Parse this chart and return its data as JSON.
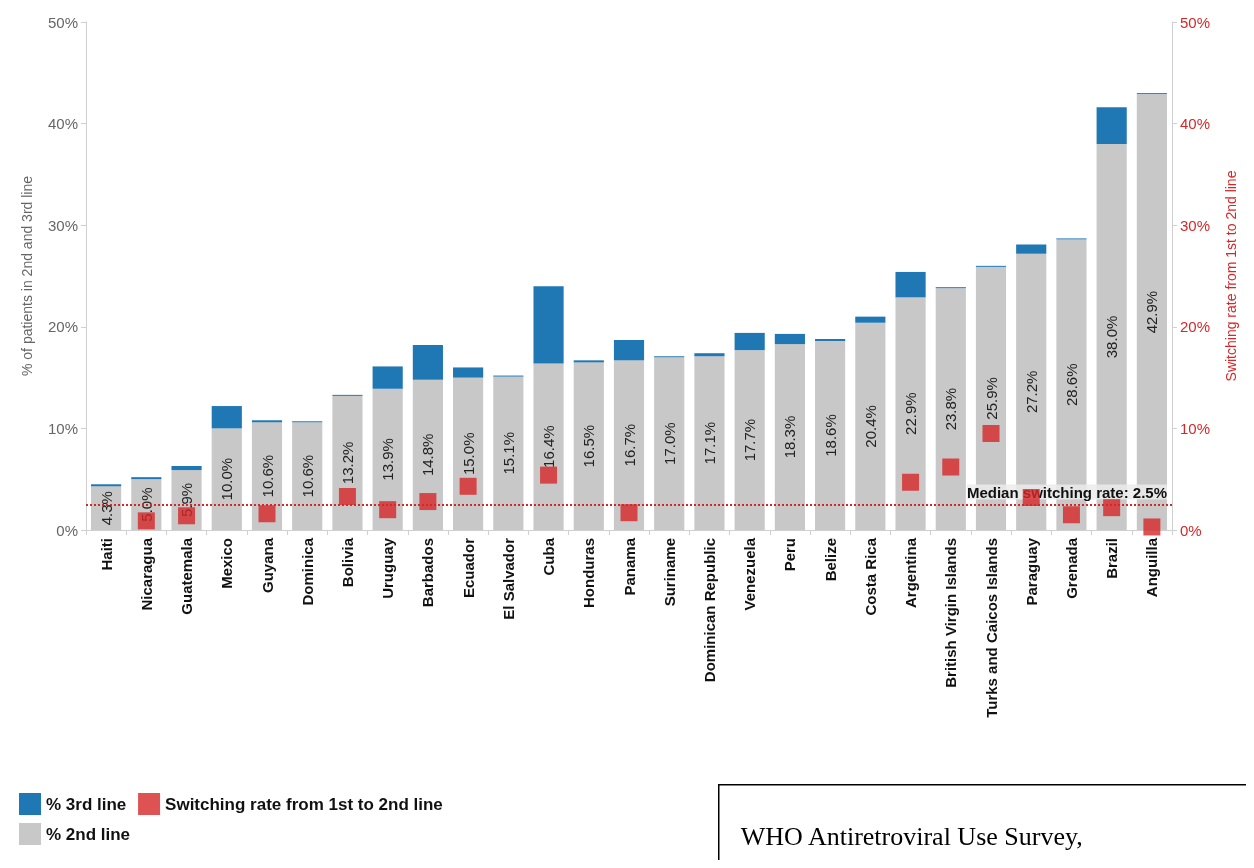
{
  "chart_data": {
    "type": "bar",
    "stacked": true,
    "categories": [
      "Haiti",
      "Nicaragua",
      "Guatemala",
      "Mexico",
      "Guyana",
      "Dominica",
      "Bolivia",
      "Uruguay",
      "Barbados",
      "Ecuador",
      "El Salvador",
      "Cuba",
      "Honduras",
      "Panama",
      "Suriname",
      "Dominican Republic",
      "Venezuela",
      "Peru",
      "Belize",
      "Costa Rica",
      "Argentina",
      "British Virgin Islands",
      "Turks and Caicos Islands",
      "Paraguay",
      "Grenada",
      "Brazil",
      "Anguilla"
    ],
    "series": [
      {
        "name": "% 2nd line",
        "color": "#c8c8c8",
        "values": [
          4.3,
          5.0,
          5.9,
          10.0,
          10.6,
          10.6,
          13.2,
          13.9,
          14.8,
          15.0,
          15.1,
          16.4,
          16.5,
          16.7,
          17.0,
          17.1,
          17.7,
          18.3,
          18.6,
          20.4,
          22.9,
          23.8,
          25.9,
          27.2,
          28.6,
          38.0,
          42.9
        ],
        "value_labels": [
          "4.3%",
          "5.0%",
          "5.9%",
          "10.0%",
          "10.6%",
          "10.6%",
          "13.2%",
          "13.9%",
          "14.8%",
          "15.0%",
          "15.1%",
          "16.4%",
          "16.5%",
          "16.7%",
          "17.0%",
          "17.1%",
          "17.7%",
          "18.3%",
          "18.6%",
          "20.4%",
          "22.9%",
          "23.8%",
          "25.9%",
          "27.2%",
          "28.6%",
          "38.0%",
          "42.9%"
        ]
      },
      {
        "name": "% 3rd line",
        "color": "#1f77b4",
        "values": [
          0.2,
          0.2,
          0.4,
          2.2,
          0.2,
          0.1,
          0.1,
          2.2,
          3.4,
          1.0,
          0.1,
          7.6,
          0.2,
          2.0,
          0.1,
          0.3,
          1.7,
          1.0,
          0.2,
          0.6,
          2.5,
          0.1,
          0.1,
          0.9,
          0.1,
          3.6,
          0.1
        ]
      },
      {
        "name": "Switching rate from 1st to 2nd line",
        "type": "scatter",
        "axis": "y2",
        "color": "#d62728",
        "values": [
          null,
          0.9,
          1.4,
          null,
          1.6,
          null,
          3.3,
          2.0,
          2.8,
          4.3,
          null,
          5.4,
          null,
          1.7,
          null,
          null,
          null,
          null,
          null,
          null,
          4.7,
          6.2,
          9.5,
          3.2,
          1.5,
          2.2,
          0.3
        ]
      }
    ],
    "ylim": [
      0,
      50
    ],
    "yticks": [
      {
        "value": 0,
        "label": "0%"
      },
      {
        "value": 10,
        "label": "10%"
      },
      {
        "value": 20,
        "label": "20%"
      },
      {
        "value": 30,
        "label": "30%"
      },
      {
        "value": 40,
        "label": "40%"
      },
      {
        "value": 50,
        "label": "50%"
      }
    ],
    "y2lim": [
      0,
      50
    ],
    "y2ticks": [
      {
        "value": 0,
        "label": "0%"
      },
      {
        "value": 10,
        "label": "10%"
      },
      {
        "value": 20,
        "label": "20%"
      },
      {
        "value": 30,
        "label": "30%"
      },
      {
        "value": 40,
        "label": "40%"
      },
      {
        "value": 50,
        "label": "50%"
      }
    ],
    "ylabel": "% of patients in 2nd and 3rd line",
    "y2label": "Switching rate from 1st to 2nd line",
    "ref_lines": [
      {
        "axis": "y2",
        "value": 2.5,
        "label": "Median switching rate: 2.5%",
        "color": "#d62728",
        "line_style": "dotted"
      }
    ],
    "marker": "square",
    "grid": false,
    "legend": "bottom left",
    "annotations": [
      "WHO Antiretroviral Use Survey,"
    ]
  }
}
